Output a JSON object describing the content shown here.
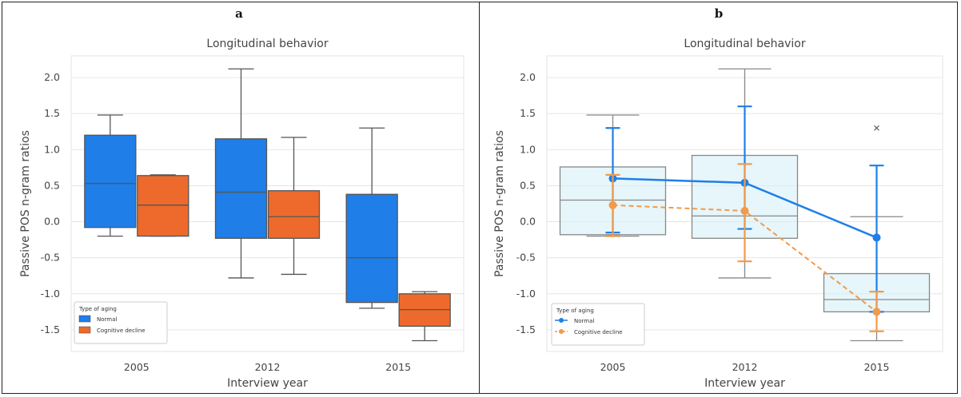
{
  "chart_data": [
    {
      "panel": "a",
      "type": "box",
      "title": "Longitudinal behavior",
      "xlabel": "Interview year",
      "ylabel": "Passive POS n-gram ratios",
      "categories": [
        "2005",
        "2012",
        "2015"
      ],
      "ylim": [
        -1.8,
        2.3
      ],
      "yticks": [
        2.0,
        1.5,
        1.0,
        0.5,
        0.0,
        -0.5,
        -1.0,
        -1.5
      ],
      "grid": true,
      "legend": {
        "title": "Type of aging",
        "placement": "bottom-left",
        "entries": [
          "Normal",
          "Cognitive decline"
        ]
      },
      "series": [
        {
          "name": "Normal",
          "color": "#1f7ee8",
          "boxes": [
            {
              "min": -0.2,
              "q1": -0.08,
              "median": 0.53,
              "q3": 1.2,
              "max": 1.48
            },
            {
              "min": -0.78,
              "q1": -0.23,
              "median": 0.41,
              "q3": 1.15,
              "max": 2.12
            },
            {
              "min": -1.2,
              "q1": -1.12,
              "median": -0.5,
              "q3": 0.38,
              "max": 1.3
            }
          ]
        },
        {
          "name": "Cognitive decline",
          "color": "#ed6a2c",
          "boxes": [
            {
              "min": -0.2,
              "q1": -0.2,
              "median": 0.23,
              "q3": 0.64,
              "max": 0.65
            },
            {
              "min": -0.73,
              "q1": -0.23,
              "median": 0.07,
              "q3": 0.43,
              "max": 1.17
            },
            {
              "min": -1.65,
              "q1": -1.45,
              "median": -1.22,
              "q3": -1.0,
              "max": -0.97
            }
          ]
        }
      ]
    },
    {
      "panel": "b",
      "type": "box+pointplot",
      "title": "Longitudinal behavior",
      "xlabel": "Interview year",
      "ylabel": "Passive POS n-gram ratios",
      "categories": [
        "2005",
        "2012",
        "2015"
      ],
      "ylim": [
        -1.8,
        2.3
      ],
      "yticks": [
        2.0,
        1.5,
        1.0,
        0.5,
        0.0,
        -0.5,
        -1.0,
        -1.5
      ],
      "grid": true,
      "legend": {
        "title": "Type of aging",
        "placement": "bottom-left",
        "entries": [
          "Normal",
          "Cognitive decline"
        ]
      },
      "boxes": [
        {
          "min": -0.2,
          "q1": -0.18,
          "median": 0.3,
          "q3": 0.76,
          "max": 1.48
        },
        {
          "min": -0.78,
          "q1": -0.23,
          "median": 0.08,
          "q3": 0.92,
          "max": 2.12
        },
        {
          "min": -1.65,
          "q1": -1.25,
          "median": -1.08,
          "q3": -0.72,
          "max": 0.07
        }
      ],
      "outliers": [
        {
          "x": "2015",
          "y": 1.3
        }
      ],
      "series": [
        {
          "name": "Normal",
          "color": "#1f7ee8",
          "linestyle": "solid",
          "means": [
            0.6,
            0.54,
            -0.22
          ],
          "ci_low": [
            -0.15,
            -0.1,
            -1.25
          ],
          "ci_high": [
            1.3,
            1.6,
            0.78
          ]
        },
        {
          "name": "Cognitive decline",
          "color": "#f29a4a",
          "linestyle": "dashed",
          "means": [
            0.23,
            0.15,
            -1.25
          ],
          "ci_low": [
            -0.2,
            -0.55,
            -1.52
          ],
          "ci_high": [
            0.65,
            0.8,
            -0.97
          ]
        }
      ]
    }
  ],
  "panel_labels": [
    "a",
    "b"
  ]
}
